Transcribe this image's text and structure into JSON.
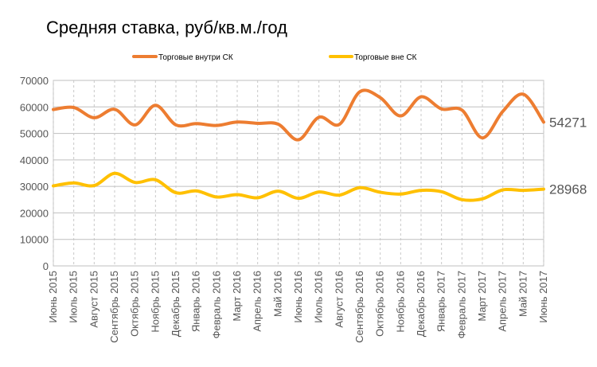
{
  "chart_data": {
    "type": "line",
    "title": "Средняя ставка, руб/кв.м./год",
    "categories": [
      "Июнь 2015",
      "Июль 2015",
      "Август 2015",
      "Сентябрь 2015",
      "Октябрь 2015",
      "Ноябрь 2015",
      "Декабрь 2015",
      "Январь 2016",
      "Февраль 2016",
      "Март 2016",
      "Апрель 2016",
      "Май 2016",
      "Июнь 2016",
      "Июль 2016",
      "Август 2016",
      "Сентябрь 2016",
      "Октябрь 2016",
      "Ноябрь 2016",
      "Декабрь 2016",
      "Январь 2017",
      "Февраль 2017",
      "Март 2017",
      "Апрель 2017",
      "Май 2017",
      "Июнь 2017"
    ],
    "series": [
      {
        "name": "Торговые внутри СК",
        "color": "#ED7D31",
        "values": [
          59000,
          59800,
          55900,
          59100,
          53200,
          60600,
          53200,
          53700,
          53000,
          54300,
          53800,
          53500,
          47600,
          56100,
          53400,
          65700,
          63500,
          56600,
          63800,
          59200,
          58800,
          48300,
          58300,
          64800,
          54271
        ],
        "end_label": "54271"
      },
      {
        "name": "Торговые вне СК",
        "color": "#FFC000",
        "values": [
          30200,
          31300,
          30300,
          34900,
          31500,
          32500,
          27600,
          28300,
          26000,
          26900,
          25700,
          28200,
          25500,
          27900,
          26700,
          29500,
          27800,
          27100,
          28500,
          28000,
          25000,
          25300,
          28700,
          28500,
          28968
        ],
        "end_label": "28968"
      }
    ],
    "ylim": [
      0,
      70000
    ],
    "yticks": [
      "0",
      "10000",
      "20000",
      "30000",
      "40000",
      "50000",
      "60000",
      "70000"
    ],
    "xlabel": "",
    "ylabel": "",
    "grid": true,
    "legend": "top"
  }
}
